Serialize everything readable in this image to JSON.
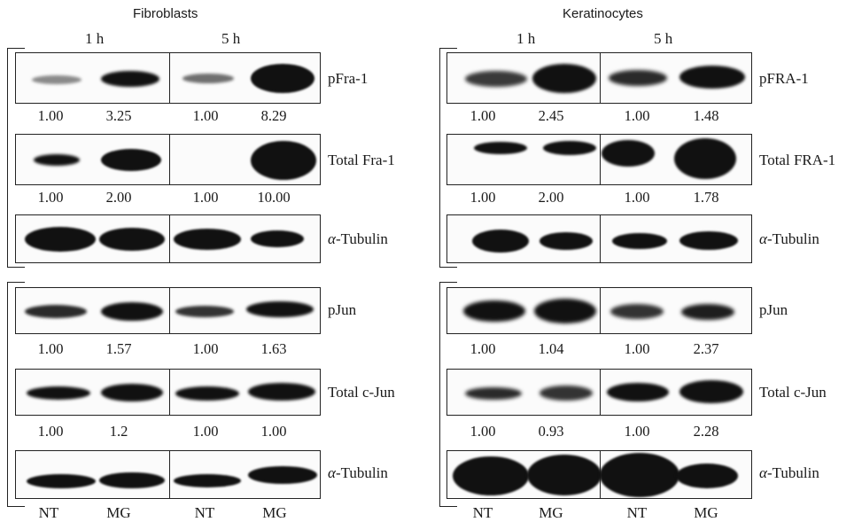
{
  "panels": [
    {
      "title": "Fibroblasts",
      "timepoints": [
        "1 h",
        "5 h"
      ],
      "lanes": [
        "NT",
        "MG",
        "NT",
        "MG"
      ],
      "blots": [
        {
          "label": "pFra-1",
          "quant": [
            "1.00",
            "3.25",
            "1.00",
            "8.29"
          ]
        },
        {
          "label": "Total Fra-1",
          "quant": [
            "1.00",
            "2.00",
            "1.00",
            "10.00"
          ]
        },
        {
          "label": "α-Tubulin"
        },
        {
          "label": "pJun",
          "quant": [
            "1.00",
            "1.57",
            "1.00",
            "1.63"
          ]
        },
        {
          "label": "Total c-Jun",
          "quant": [
            "1.00",
            "1.2",
            "1.00",
            "1.00"
          ]
        },
        {
          "label": "α-Tubulin"
        }
      ]
    },
    {
      "title": "Keratinocytes",
      "timepoints": [
        "1 h",
        "5 h"
      ],
      "lanes": [
        "NT",
        "MG",
        "NT",
        "MG"
      ],
      "blots": [
        {
          "label": "pFRA-1",
          "quant": [
            "1.00",
            "2.45",
            "1.00",
            "1.48"
          ]
        },
        {
          "label": "Total FRA-1",
          "quant": [
            "1.00",
            "2.00",
            "1.00",
            "1.78"
          ]
        },
        {
          "label": "α-Tubulin"
        },
        {
          "label": "pJun",
          "quant": [
            "1.00",
            "1.04",
            "1.00",
            "2.37"
          ]
        },
        {
          "label": "Total c-Jun",
          "quant": [
            "1.00",
            "0.93",
            "1.00",
            "2.28"
          ]
        },
        {
          "label": "α-Tubulin"
        }
      ]
    }
  ]
}
